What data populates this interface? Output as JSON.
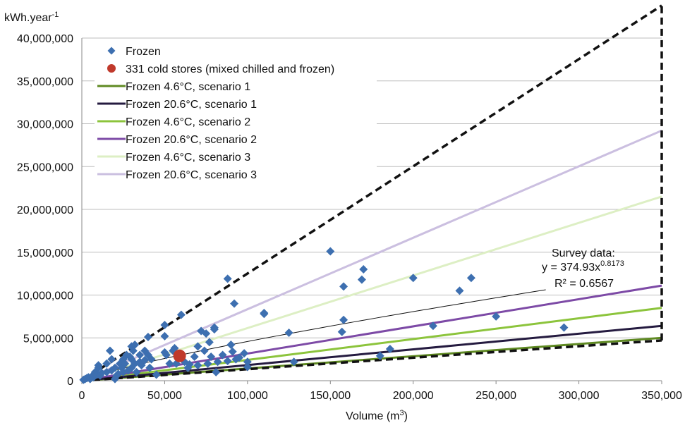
{
  "chart_data": {
    "type": "scatter",
    "y_unit_label": "kWh.year",
    "y_unit_exp": "-1",
    "xlabel": "Volume (m",
    "xlabel_exp": "3",
    "xlabel_close": ")",
    "xlim": [
      0,
      350000
    ],
    "ylim": [
      0,
      40000000
    ],
    "x_ticks": [
      "0",
      "50,000",
      "100,000",
      "150,000",
      "200,000",
      "250,000",
      "300,000",
      "350,000"
    ],
    "y_ticks": [
      "0",
      "5,000,000",
      "10,000,000",
      "15,000,000",
      "20,000,000",
      "25,000,000",
      "30,000,000",
      "35,000,000",
      "40,000,000"
    ],
    "grid": "horizontal",
    "legend_position": "top-left",
    "colors": {
      "frozen": "#3d6fb0",
      "cold_stores": "#c0392b",
      "s1_4_6": "#5f8a22",
      "s1_20_6": "#251b40",
      "s2_4_6": "#8cc43c",
      "s2_20_6": "#7d4aa6",
      "s3_4_6": "#ddefc4",
      "s3_20_6": "#cbbfe0",
      "envelope": "#111111",
      "fit": "#111111"
    },
    "series": [
      {
        "name": "Frozen",
        "kind": "scatter",
        "points": [
          [
            1000,
            100000
          ],
          [
            2000,
            200000
          ],
          [
            3000,
            300000
          ],
          [
            4000,
            400000
          ],
          [
            5000,
            200000
          ],
          [
            6000,
            500000
          ],
          [
            7000,
            400000
          ],
          [
            8000,
            1000000
          ],
          [
            9000,
            700000
          ],
          [
            10000,
            1500000
          ],
          [
            10000,
            1800000
          ],
          [
            11000,
            600000
          ],
          [
            12000,
            900000
          ],
          [
            15000,
            1000000
          ],
          [
            15000,
            2000000
          ],
          [
            17000,
            3500000
          ],
          [
            18000,
            2500000
          ],
          [
            18000,
            1200000
          ],
          [
            20000,
            1500000
          ],
          [
            20000,
            200000
          ],
          [
            21000,
            600000
          ],
          [
            22000,
            800000
          ],
          [
            23000,
            2000000
          ],
          [
            24000,
            1500000
          ],
          [
            25000,
            2500000
          ],
          [
            25000,
            1000000
          ],
          [
            26000,
            2000000
          ],
          [
            27000,
            3000000
          ],
          [
            28000,
            1200000
          ],
          [
            29000,
            2800000
          ],
          [
            30000,
            2500000
          ],
          [
            30000,
            4000000
          ],
          [
            30000,
            1500000
          ],
          [
            31000,
            3500000
          ],
          [
            32000,
            4200000
          ],
          [
            32000,
            2000000
          ],
          [
            33000,
            1000000
          ],
          [
            35000,
            3000000
          ],
          [
            35000,
            2200000
          ],
          [
            36000,
            1800000
          ],
          [
            38000,
            3500000
          ],
          [
            38000,
            2400000
          ],
          [
            40000,
            5100000
          ],
          [
            40000,
            3000000
          ],
          [
            41000,
            1500000
          ],
          [
            42000,
            2500000
          ],
          [
            45000,
            700000
          ],
          [
            50000,
            6500000
          ],
          [
            50000,
            3300000
          ],
          [
            50000,
            5200000
          ],
          [
            51000,
            3000000
          ],
          [
            53000,
            2000000
          ],
          [
            55000,
            3500000
          ],
          [
            56000,
            3800000
          ],
          [
            57000,
            2000000
          ],
          [
            60000,
            7700000
          ],
          [
            62000,
            2200000
          ],
          [
            64000,
            1500000
          ],
          [
            65000,
            1900000
          ],
          [
            68000,
            2800000
          ],
          [
            70000,
            4000000
          ],
          [
            70000,
            1800000
          ],
          [
            72000,
            5800000
          ],
          [
            74000,
            3500000
          ],
          [
            75000,
            5500000
          ],
          [
            76000,
            2000000
          ],
          [
            77000,
            4500000
          ],
          [
            78000,
            2800000
          ],
          [
            80000,
            6200000
          ],
          [
            80000,
            6000000
          ],
          [
            81000,
            1000000
          ],
          [
            82000,
            2200000
          ],
          [
            85000,
            3000000
          ],
          [
            88000,
            11900000
          ],
          [
            88000,
            2300000
          ],
          [
            90000,
            4200000
          ],
          [
            91000,
            3400000
          ],
          [
            92000,
            9000000
          ],
          [
            93000,
            2500000
          ],
          [
            95000,
            2700000
          ],
          [
            98000,
            3200000
          ],
          [
            100000,
            1600000
          ],
          [
            100000,
            2200000
          ],
          [
            110000,
            7900000
          ],
          [
            110000,
            7800000
          ],
          [
            125000,
            5600000
          ],
          [
            128000,
            2200000
          ],
          [
            150000,
            15100000
          ],
          [
            157000,
            5700000
          ],
          [
            158000,
            7100000
          ],
          [
            158000,
            11000000
          ],
          [
            169000,
            11800000
          ],
          [
            170000,
            13000000
          ],
          [
            180000,
            2900000
          ],
          [
            186000,
            3700000
          ],
          [
            200000,
            12000000
          ],
          [
            212000,
            6400000
          ],
          [
            228000,
            10500000
          ],
          [
            235000,
            12000000
          ],
          [
            250000,
            7500000
          ],
          [
            291000,
            6200000
          ]
        ]
      },
      {
        "name": "331 cold stores (mixed chilled and frozen)",
        "kind": "point",
        "points": [
          [
            59000,
            2900000
          ]
        ]
      },
      {
        "name": "Frozen 4.6°C, scenario 1",
        "kind": "line",
        "points": [
          [
            0,
            0
          ],
          [
            350000,
            5000000
          ]
        ]
      },
      {
        "name": "Frozen 20.6°C, scenario 1",
        "kind": "line",
        "points": [
          [
            0,
            0
          ],
          [
            350000,
            6400000
          ]
        ]
      },
      {
        "name": "Frozen 4.6°C, scenario 2",
        "kind": "line",
        "points": [
          [
            0,
            0
          ],
          [
            350000,
            8500000
          ]
        ]
      },
      {
        "name": "Frozen 20.6°C, scenario 2",
        "kind": "line",
        "points": [
          [
            0,
            0
          ],
          [
            350000,
            11100000
          ]
        ]
      },
      {
        "name": "Frozen 4.6°C, scenario 3",
        "kind": "line",
        "points": [
          [
            0,
            0
          ],
          [
            350000,
            21500000
          ]
        ]
      },
      {
        "name": "Frozen 20.6°C, scenario 3",
        "kind": "line",
        "points": [
          [
            0,
            0
          ],
          [
            350000,
            29200000
          ]
        ]
      }
    ],
    "envelope": {
      "upper": [
        [
          0,
          0
        ],
        [
          350000,
          43800000
        ]
      ],
      "lower": [
        [
          0,
          0
        ],
        [
          350000,
          4700000
        ]
      ],
      "right_edge": [
        [
          350000,
          4700000
        ],
        [
          350000,
          43800000
        ]
      ]
    },
    "trend": {
      "a": 374.93,
      "b": 0.8173,
      "x_range": [
        1000,
        280000
      ]
    },
    "annotation": {
      "line1": "Survey data:",
      "line2_prefix": "y = 374.93x",
      "line2_exp": "0.8173",
      "line3": "R² = 0.6567"
    }
  }
}
